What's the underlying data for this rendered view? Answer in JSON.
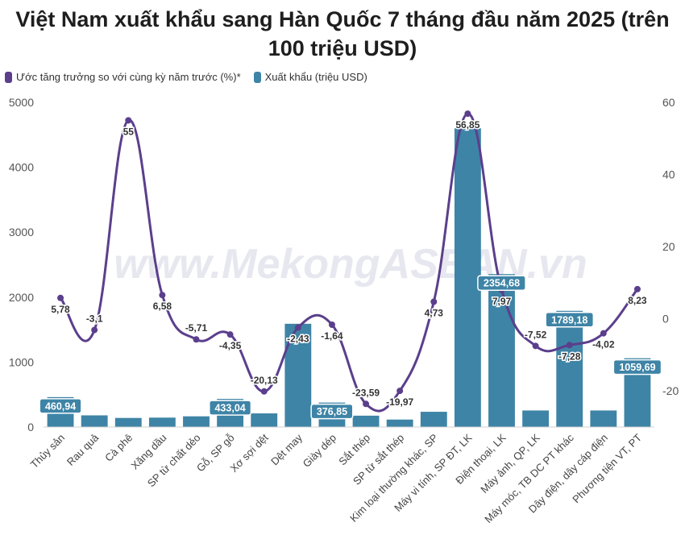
{
  "title": "Việt Nam xuất khẩu sang Hàn Quốc 7 tháng đầu năm 2025 (trên 100 triệu USD)",
  "title_line1": "Việt Nam xuất khẩu sang Hàn Quốc 7 tháng đầu năm 2025 (trên",
  "title_line2": "100 triệu USD)",
  "watermark": "www.MekongASEAN.vn",
  "colors": {
    "bar": "#3e84a6",
    "line": "#5b3f8c",
    "label_box": "#3e84a6"
  },
  "chart_data": {
    "type": "bar",
    "categories": [
      "Thủy sản",
      "Rau quả",
      "Cà phê",
      "Xăng dầu",
      "SP từ chất dẻo",
      "Gỗ, SP gỗ",
      "Xơ sợi dệt",
      "Dệt may",
      "Giày dép",
      "Sắt thép",
      "SP từ sắt thép",
      "Kim loại thường khác, SP",
      "Máy vi tính, SP ĐT, LK",
      "Điện thoại, LK",
      "Máy ảnh, QP, LK",
      "Máy móc, TB DC PT khác",
      "Dây điện, dây cáp điện",
      "Phương tiện VT, PT"
    ],
    "series": [
      {
        "name": "Xuất khẩu (triệu USD)",
        "type": "bar",
        "axis": "left",
        "values": [
          460.94,
          180,
          140,
          145,
          165,
          433.04,
          210,
          1590,
          376.85,
          175,
          115,
          235,
          4600,
          2354.68,
          255,
          1789.18,
          255,
          1059.69
        ],
        "data_labels": [
          "460,94",
          "",
          "",
          "",
          "",
          "433,04",
          "",
          "",
          "376,85",
          "",
          "",
          "",
          "",
          "2354,68",
          "",
          "1789,18",
          "",
          "1059,69"
        ]
      },
      {
        "name": "Ước tăng trưởng so với cùng kỳ năm trước (%)*",
        "type": "line",
        "axis": "right",
        "values": [
          5.78,
          -3.1,
          55,
          6.58,
          -5.71,
          -4.35,
          -20.13,
          -2.43,
          -1.64,
          -23.59,
          -19.97,
          4.73,
          56.85,
          7.97,
          -7.52,
          -7.28,
          -4.02,
          8.23
        ],
        "data_labels": [
          "5,78",
          "-3,1",
          "55",
          "6,58",
          "-5,71",
          "-4,35",
          "-20,13",
          "-2,43",
          "-1,64",
          "-23,59",
          "-19,97",
          "4,73",
          "56,85",
          "7,97",
          "-7,52",
          "-7,28",
          "-4,02",
          "8,23"
        ]
      }
    ],
    "y_left": {
      "ticks": [
        "0",
        "1000",
        "2000",
        "3000",
        "4000",
        "5000"
      ],
      "ylim": [
        0,
        5000
      ]
    },
    "y_right": {
      "ticks": [
        "-20",
        "0",
        "20",
        "40",
        "60"
      ],
      "ylim": [
        -30,
        60
      ]
    },
    "legend_position": "top-left",
    "grid": false
  }
}
